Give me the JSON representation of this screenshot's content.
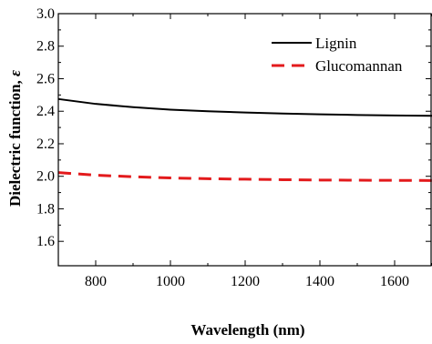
{
  "chart_data": {
    "type": "line",
    "xlabel": "Wavelength (nm)",
    "ylabel": "Dielectric function, ",
    "ylabel_symbol": "ε",
    "xlim": [
      700,
      1700
    ],
    "ylim": [
      1.45,
      3.0
    ],
    "x_ticks": [
      800,
      1000,
      1200,
      1400,
      1600
    ],
    "y_ticks": [
      1.6,
      1.8,
      2.0,
      2.2,
      2.4,
      2.6,
      2.8,
      3.0
    ],
    "x_tick_labels": [
      "800",
      "1000",
      "1200",
      "1400",
      "1600"
    ],
    "y_tick_labels": [
      "1.6",
      "1.8",
      "2.0",
      "2.2",
      "2.4",
      "2.6",
      "2.8",
      "3.0"
    ],
    "grid": false,
    "legend_position": "top-right",
    "series": [
      {
        "name": "Lignin",
        "color": "#000000",
        "dash": "solid",
        "x": [
          700,
          800,
          900,
          1000,
          1100,
          1200,
          1300,
          1400,
          1500,
          1600,
          1700
        ],
        "y": [
          2.475,
          2.445,
          2.425,
          2.41,
          2.4,
          2.392,
          2.386,
          2.381,
          2.377,
          2.374,
          2.372
        ]
      },
      {
        "name": "Glucomannan",
        "color": "#e31a1c",
        "dash": "dashed",
        "x": [
          700,
          800,
          900,
          1000,
          1100,
          1200,
          1300,
          1400,
          1500,
          1600,
          1700
        ],
        "y": [
          2.023,
          2.007,
          1.997,
          1.99,
          1.985,
          1.982,
          1.979,
          1.977,
          1.976,
          1.975,
          1.974
        ]
      }
    ]
  }
}
